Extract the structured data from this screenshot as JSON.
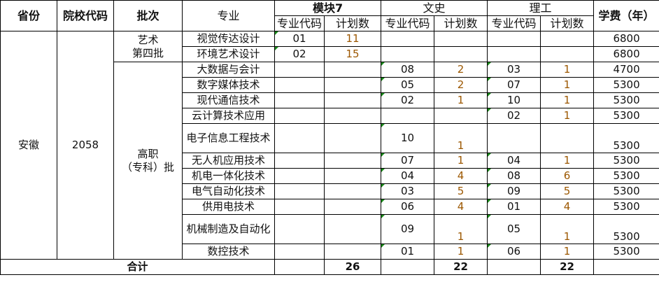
{
  "headers": {
    "province": "省份",
    "school_code": "院校代码",
    "batch": "批次",
    "major": "专业",
    "group_module7": "模块7",
    "group_arts": "文史",
    "group_science": "理工",
    "fee": "学费（年）",
    "major_code": "专业代码",
    "plan_count": "计划数"
  },
  "province": "安徽",
  "school_code": "2058",
  "batches": [
    {
      "label": "艺术\n第四批",
      "rows": 2
    },
    {
      "label": "高职\n（专科）批",
      "rows": 11
    }
  ],
  "rows": [
    {
      "major": "视觉传达设计",
      "m7_code": "01",
      "m7_count": "11",
      "ws_code": "",
      "ws_count": "",
      "lg_code": "",
      "lg_count": "",
      "fee": "6800"
    },
    {
      "major": "环境艺术设计",
      "m7_code": "02",
      "m7_count": "15",
      "ws_code": "",
      "ws_count": "",
      "lg_code": "",
      "lg_count": "",
      "fee": "6800"
    },
    {
      "major": "大数据与会计",
      "m7_code": "",
      "m7_count": "",
      "ws_code": "08",
      "ws_count": "2",
      "lg_code": "03",
      "lg_count": "1",
      "fee": "4700"
    },
    {
      "major": "数字媒体技术",
      "m7_code": "",
      "m7_count": "",
      "ws_code": "05",
      "ws_count": "2",
      "lg_code": "07",
      "lg_count": "1",
      "fee": "5300"
    },
    {
      "major": "现代通信技术",
      "m7_code": "",
      "m7_count": "",
      "ws_code": "02",
      "ws_count": "1",
      "lg_code": "10",
      "lg_count": "1",
      "fee": "5300"
    },
    {
      "major": "云计算技术应用",
      "m7_code": "",
      "m7_count": "",
      "ws_code": "",
      "ws_count": "",
      "lg_code": "02",
      "lg_count": "1",
      "fee": "5300"
    },
    {
      "major": "电子信息工程技术",
      "m7_code": "",
      "m7_count": "",
      "ws_code": "10",
      "ws_count": "1",
      "lg_code": "",
      "lg_count": "",
      "fee": "5300",
      "tall": true
    },
    {
      "major": "无人机应用技术",
      "m7_code": "",
      "m7_count": "",
      "ws_code": "07",
      "ws_count": "1",
      "lg_code": "04",
      "lg_count": "1",
      "fee": "5300"
    },
    {
      "major": "机电一体化技术",
      "m7_code": "",
      "m7_count": "",
      "ws_code": "04",
      "ws_count": "4",
      "lg_code": "08",
      "lg_count": "6",
      "fee": "5300"
    },
    {
      "major": "电气自动化技术",
      "m7_code": "",
      "m7_count": "",
      "ws_code": "03",
      "ws_count": "5",
      "lg_code": "09",
      "lg_count": "5",
      "fee": "5300"
    },
    {
      "major": "供用电技术",
      "m7_code": "",
      "m7_count": "",
      "ws_code": "06",
      "ws_count": "4",
      "lg_code": "01",
      "lg_count": "4",
      "fee": "5300"
    },
    {
      "major": "机械制造及自动化",
      "m7_code": "",
      "m7_count": "",
      "ws_code": "09",
      "ws_count": "1",
      "lg_code": "05",
      "lg_count": "1",
      "fee": "5300",
      "tall": true
    },
    {
      "major": "数控技术",
      "m7_code": "",
      "m7_count": "",
      "ws_code": "01",
      "ws_count": "1",
      "lg_code": "06",
      "lg_count": "1",
      "fee": "5300"
    }
  ],
  "total": {
    "label": "合计",
    "m7": "26",
    "ws": "22",
    "lg": "22"
  },
  "colors": {
    "count_text": "#9c5700",
    "cell_marker": "#1a8a1a"
  }
}
